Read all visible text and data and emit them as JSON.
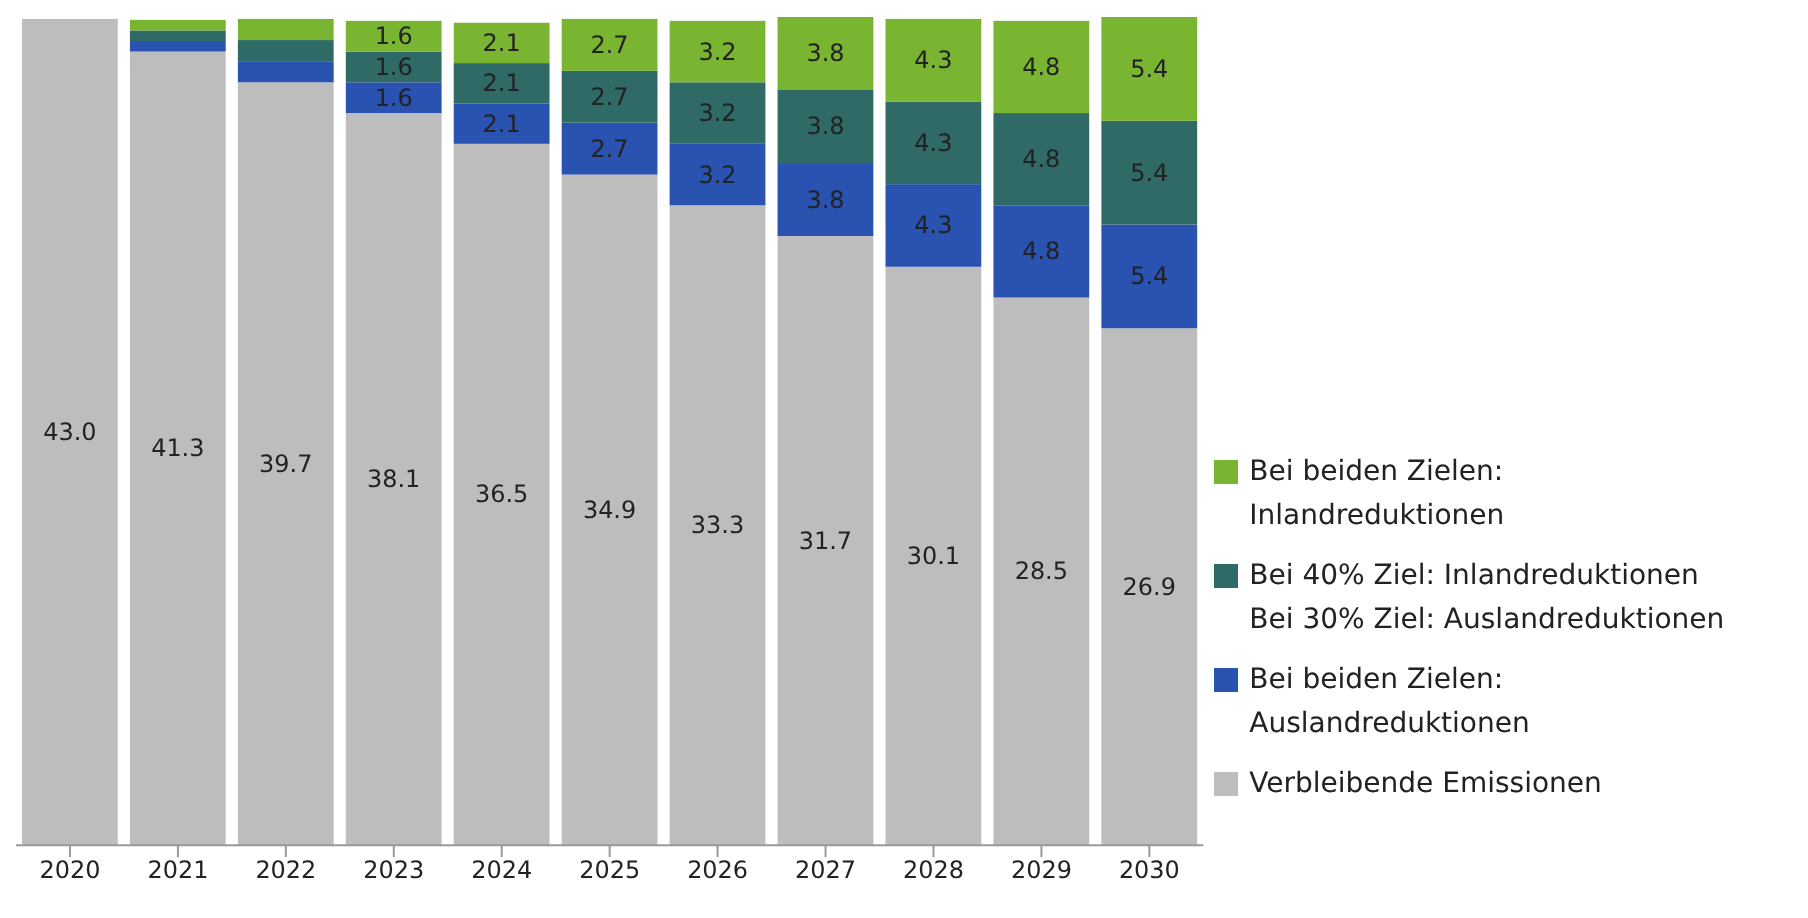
{
  "chart_data": {
    "type": "bar",
    "stacked": true,
    "legend": "right",
    "categories": [
      "2020",
      "2021",
      "2022",
      "2023",
      "2024",
      "2025",
      "2026",
      "2027",
      "2028",
      "2029",
      "2030"
    ],
    "series": [
      {
        "name": "Verbleibende Emissionen",
        "color": "#bdbdbd",
        "values": [
          43.0,
          41.3,
          39.7,
          38.1,
          36.5,
          34.9,
          33.3,
          31.7,
          30.1,
          28.5,
          26.9
        ],
        "value_labels": [
          "43.0",
          "41.3",
          "39.7",
          "38.1",
          "36.5",
          "34.9",
          "33.3",
          "31.7",
          "30.1",
          "28.5",
          "26.9"
        ]
      },
      {
        "name": "Bei beiden Zielen:\nAuslandreduktionen",
        "color": "#2a52b0",
        "values": [
          null,
          0.55,
          1.1,
          1.6,
          2.1,
          2.7,
          3.2,
          3.8,
          4.3,
          4.8,
          5.4
        ],
        "value_labels": [
          null,
          null,
          null,
          "1.6",
          "2.1",
          "2.7",
          "3.2",
          "3.8",
          "4.3",
          "4.8",
          "5.4"
        ]
      },
      {
        "name": "Bei 40% Ziel: Inlandreduktionen\nBei 30% Ziel: Auslandreduktionen",
        "color": "#2f6a66",
        "values": [
          null,
          0.55,
          1.1,
          1.6,
          2.1,
          2.7,
          3.2,
          3.8,
          4.3,
          4.8,
          5.4
        ],
        "value_labels": [
          null,
          null,
          null,
          "1.6",
          "2.1",
          "2.7",
          "3.2",
          "3.8",
          "4.3",
          "4.8",
          "5.4"
        ]
      },
      {
        "name": "Bei beiden Zielen:\nInlandreduktionen",
        "color": "#7ab531",
        "values": [
          null,
          0.55,
          1.1,
          1.6,
          2.1,
          2.7,
          3.2,
          3.8,
          4.3,
          4.8,
          5.4
        ],
        "value_labels": [
          null,
          null,
          null,
          "1.6",
          "2.1",
          "2.7",
          "3.2",
          "3.8",
          "4.3",
          "4.8",
          "5.4"
        ]
      }
    ]
  }
}
